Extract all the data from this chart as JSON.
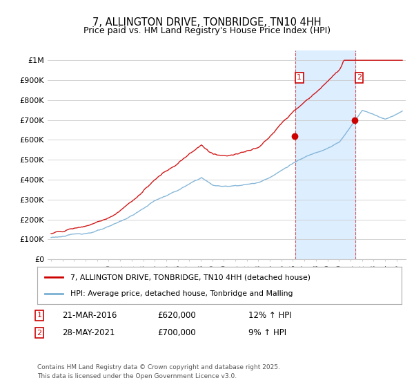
{
  "title": "7, ALLINGTON DRIVE, TONBRIDGE, TN10 4HH",
  "subtitle": "Price paid vs. HM Land Registry's House Price Index (HPI)",
  "ylabel_ticks": [
    "£0",
    "£100K",
    "£200K",
    "£300K",
    "£400K",
    "£500K",
    "£600K",
    "£700K",
    "£800K",
    "£900K",
    "£1M"
  ],
  "ytick_values": [
    0,
    100000,
    200000,
    300000,
    400000,
    500000,
    600000,
    700000,
    800000,
    900000,
    1000000
  ],
  "ylim": [
    0,
    1050000
  ],
  "xlim_start": 1994.7,
  "xlim_end": 2025.8,
  "xticks": [
    1995,
    1996,
    1997,
    1998,
    1999,
    2000,
    2001,
    2002,
    2003,
    2004,
    2005,
    2006,
    2007,
    2008,
    2009,
    2010,
    2011,
    2012,
    2013,
    2014,
    2015,
    2016,
    2017,
    2018,
    2019,
    2020,
    2021,
    2022,
    2023,
    2024,
    2025
  ],
  "red_line_color": "#cc0000",
  "blue_line_color": "#7ab0d4",
  "shade_color": "#ddeeff",
  "grid_color": "#cccccc",
  "bg_color": "#ffffff",
  "vline1_x": 2016.2,
  "vline2_x": 2021.4,
  "ann1_label": "1",
  "ann2_label": "2",
  "ann1_y": 930000,
  "ann2_y": 930000,
  "dot1_y": 620000,
  "dot2_y": 700000,
  "legend_entry1": "7, ALLINGTON DRIVE, TONBRIDGE, TN10 4HH (detached house)",
  "legend_entry2": "HPI: Average price, detached house, Tonbridge and Malling",
  "table_ann1_date": "21-MAR-2016",
  "table_ann1_price": "£620,000",
  "table_ann1_hpi": "12% ↑ HPI",
  "table_ann2_date": "28-MAY-2021",
  "table_ann2_price": "£700,000",
  "table_ann2_hpi": "9% ↑ HPI",
  "footer": "Contains HM Land Registry data © Crown copyright and database right 2025.\nThis data is licensed under the Open Government Licence v3.0."
}
